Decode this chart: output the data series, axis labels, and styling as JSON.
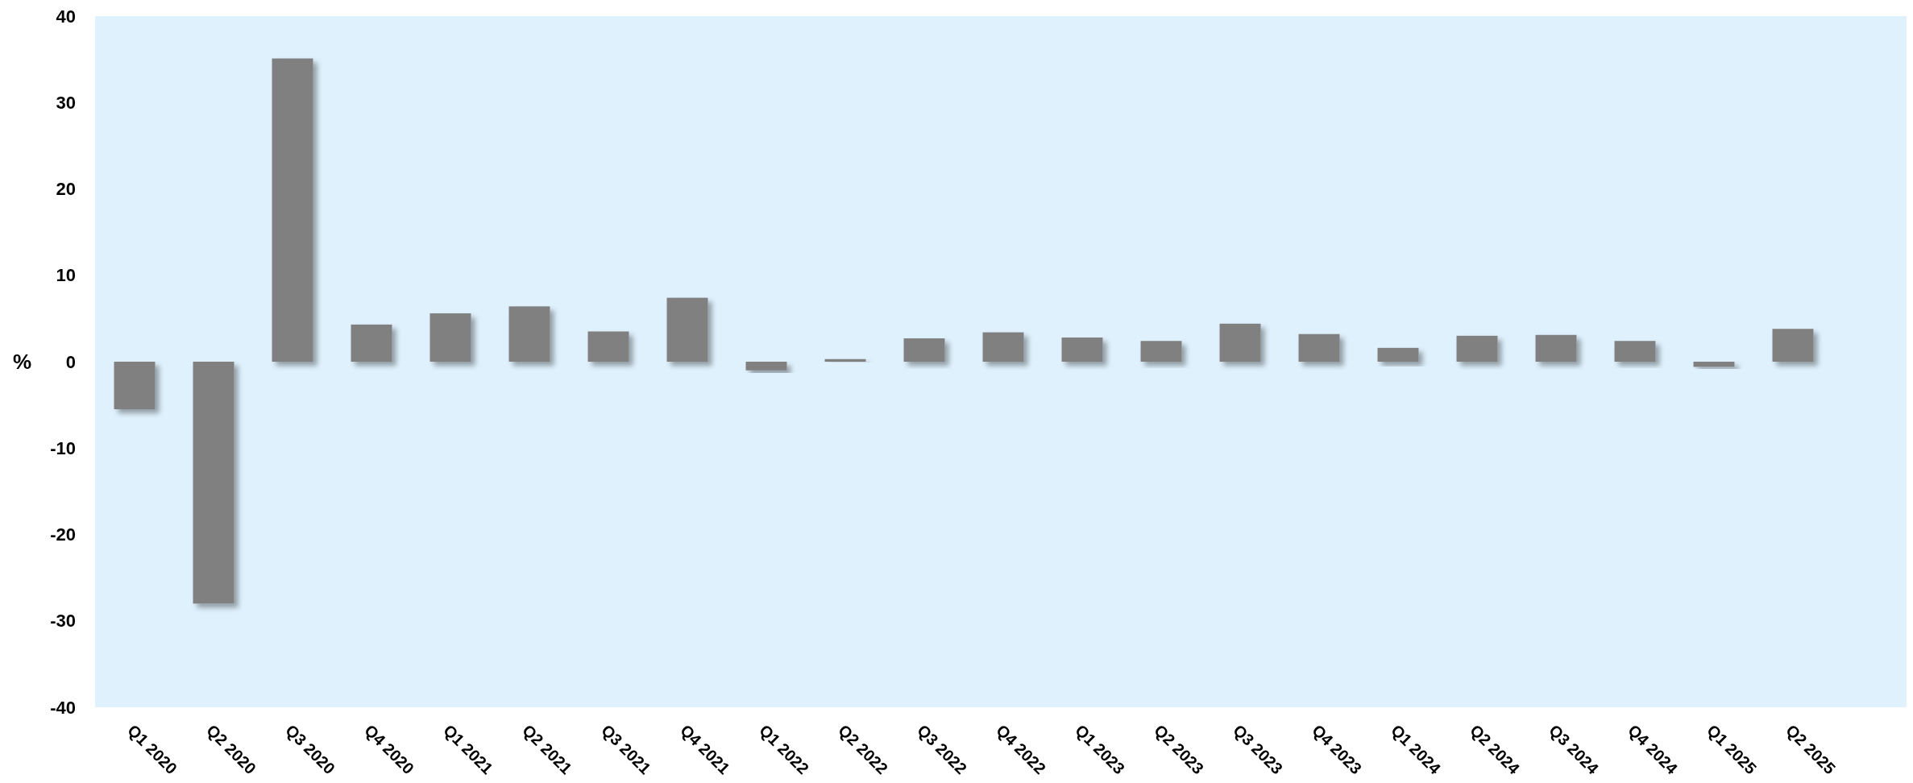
{
  "chart_data": {
    "type": "bar",
    "ylabel": "%",
    "categories": [
      "Q1 2020",
      "Q2 2020",
      "Q3 2020",
      "Q4 2020",
      "Q1 2021",
      "Q2 2021",
      "Q3 2021",
      "Q4 2021",
      "Q1 2022",
      "Q2 2022",
      "Q3 2022",
      "Q4 2022",
      "Q1 2023",
      "Q2 2023",
      "Q3 2023",
      "Q4 2023",
      "Q1 2024",
      "Q2 2024",
      "Q3 2024",
      "Q4 2024",
      "Q1 2025",
      "Q2 2025"
    ],
    "values": [
      -5.5,
      -28.0,
      35.1,
      4.3,
      5.6,
      6.4,
      3.5,
      7.4,
      -1.0,
      0.3,
      2.7,
      3.4,
      2.8,
      2.4,
      4.4,
      3.2,
      1.6,
      3.0,
      3.1,
      2.4,
      -0.6,
      3.8
    ],
    "color": "#808080",
    "ylim": [
      -40,
      40
    ],
    "yticks": [
      -40,
      -30,
      -20,
      -10,
      0,
      10,
      20,
      30,
      40
    ],
    "grid": false
  }
}
